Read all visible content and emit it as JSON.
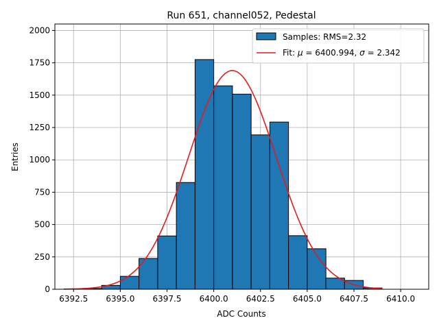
{
  "chart_data": {
    "type": "bar",
    "title": "Run 651, channel052, Pedestal",
    "xlabel": "ADC Counts",
    "ylabel": "Entries",
    "xlim": [
      6391.5,
      6411.5
    ],
    "ylim": [
      0,
      2050
    ],
    "xticks": [
      6392.5,
      6395.0,
      6397.5,
      6400.0,
      6402.5,
      6405.0,
      6407.5,
      6410.0
    ],
    "xtick_labels": [
      "6392.5",
      "6395.0",
      "6397.5",
      "6400.0",
      "6402.5",
      "6405.0",
      "6407.5",
      "6410.0"
    ],
    "yticks": [
      0,
      250,
      500,
      750,
      1000,
      1250,
      1500,
      1750,
      2000
    ],
    "ytick_labels": [
      "0",
      "250",
      "500",
      "750",
      "1000",
      "1250",
      "1500",
      "1750",
      "2000"
    ],
    "grid": true,
    "legend_position": "top-right",
    "series": [
      {
        "name": "Samples: RMS=2.32",
        "kind": "histogram",
        "color": "#1f77b4",
        "edge_color": "#000000",
        "bin_edges": [
          6392,
          6393,
          6394,
          6395,
          6396,
          6397,
          6398,
          6399,
          6400,
          6401,
          6402,
          6403,
          6404,
          6405,
          6406,
          6407,
          6408,
          6409,
          6410,
          6411
        ],
        "counts": [
          3,
          6,
          30,
          100,
          238,
          412,
          825,
          1775,
          1572,
          1508,
          1193,
          1292,
          414,
          313,
          86,
          68,
          10,
          0,
          0
        ]
      },
      {
        "name": "Fit: μ = 6400.994, σ = 2.342",
        "name_parts": [
          "Fit: ",
          "μ",
          " = 6400.994, ",
          "σ",
          " = 2.342"
        ],
        "kind": "gaussian-fit",
        "color": "#e41a1c",
        "mu": 6400.994,
        "sigma": 2.342,
        "amplitude": 1690,
        "x_range": [
          6392,
          6409
        ]
      }
    ]
  }
}
